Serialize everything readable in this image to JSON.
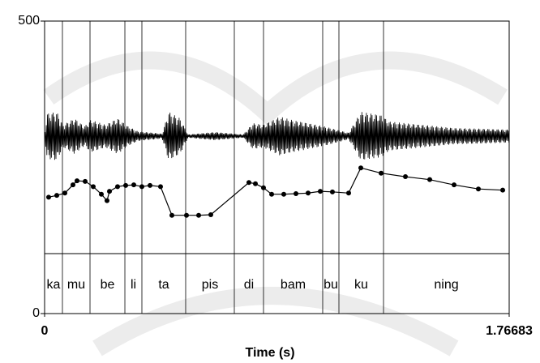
{
  "chart_data": {
    "type": "line",
    "x_label": "Time (s)",
    "xlim": [
      0,
      1.76683
    ],
    "xticks": [
      0,
      1.76683
    ],
    "ylim": [
      0,
      500
    ],
    "yticks": [
      0,
      500
    ],
    "series": [
      {
        "color": "#000000",
        "x": [
          0.0154,
          0.0463,
          0.0771,
          0.1079,
          0.1233,
          0.1542,
          0.185,
          0.2158,
          0.2374,
          0.2467,
          0.2775,
          0.3084,
          0.3392,
          0.37,
          0.4009,
          0.4409,
          0.4841,
          0.5396,
          0.5859,
          0.6321,
          0.777,
          0.8017,
          0.8325,
          0.8634,
          0.9096,
          0.9559,
          1.0021,
          1.0484,
          1.0946,
          1.1563,
          1.2026,
          1.2797,
          1.3722,
          1.4647,
          1.5572,
          1.6497,
          1.7422
        ],
        "values": [
          199,
          202,
          206,
          220,
          227,
          226,
          217,
          204,
          193,
          209,
          217,
          219,
          220,
          217,
          219,
          217,
          168,
          168,
          168,
          169,
          224,
          222,
          215,
          204,
          204,
          205,
          206,
          209,
          208,
          206,
          249,
          240,
          234,
          229,
          220,
          213,
          211
        ]
      }
    ],
    "tier": {
      "boundaries": [
        0.0678,
        0.1727,
        0.3053,
        0.37,
        0.5365,
        0.7215,
        0.8325,
        1.0576,
        1.1193,
        1.2889
      ],
      "labels": [
        "ka",
        "mu",
        "be",
        "li",
        "ta",
        "pis",
        "di",
        "bam",
        "bu",
        "ku",
        "ning"
      ]
    }
  }
}
